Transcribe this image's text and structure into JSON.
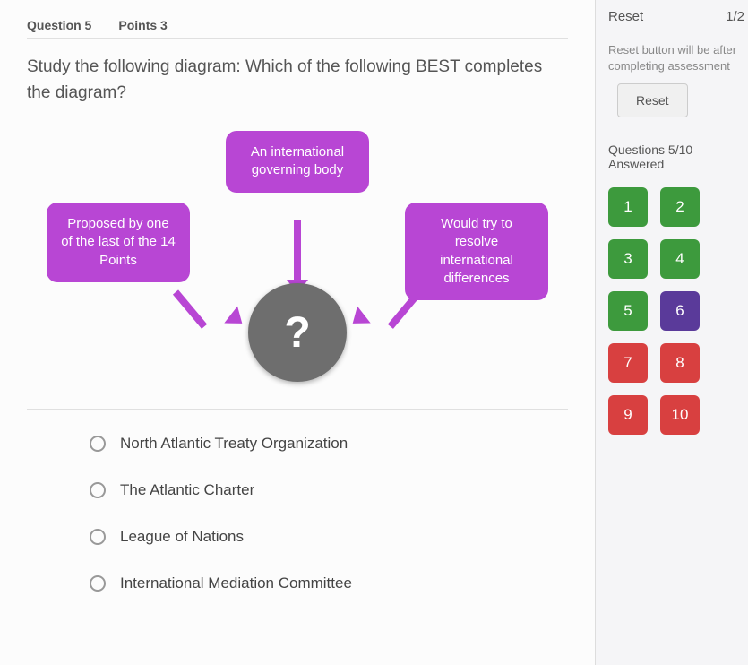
{
  "header": {
    "question_label": "Question 5",
    "points_label": "Points 3"
  },
  "question": {
    "prompt": "Study the following diagram: Which of the following BEST completes the diagram?"
  },
  "diagram": {
    "type": "concept-map",
    "node_color": "#b846d4",
    "node_text_color": "#ffffff",
    "node_fontsize": 15,
    "node_border_radius": 12,
    "center_color": "#6e6e6e",
    "center_text_color": "#ffffff",
    "center_fontsize": 48,
    "center_label": "?",
    "arrow_color": "#b846d4",
    "nodes": {
      "left": "Proposed by one of the last of the 14 Points",
      "top": "An international governing body",
      "right": "Would try to resolve international differences"
    }
  },
  "options": [
    "North Atlantic Treaty Organization",
    "The Atlantic Charter",
    "League of Nations",
    "International Mediation Committee"
  ],
  "sidebar": {
    "reset_label": "Reset",
    "counter": "1/2",
    "reset_note": "Reset button will be after completing assessment",
    "reset_button": "Reset",
    "progress": "Questions 5/10 Answered",
    "cells": [
      {
        "n": "1",
        "state": "green"
      },
      {
        "n": "2",
        "state": "green"
      },
      {
        "n": "3",
        "state": "green"
      },
      {
        "n": "4",
        "state": "green"
      },
      {
        "n": "5",
        "state": "green"
      },
      {
        "n": "6",
        "state": "purple"
      },
      {
        "n": "7",
        "state": "red"
      },
      {
        "n": "8",
        "state": "red"
      },
      {
        "n": "9",
        "state": "red"
      },
      {
        "n": "10",
        "state": "red"
      }
    ],
    "colors": {
      "green": "#3d9a3d",
      "purple": "#5a3a9a",
      "red": "#d84040"
    }
  }
}
